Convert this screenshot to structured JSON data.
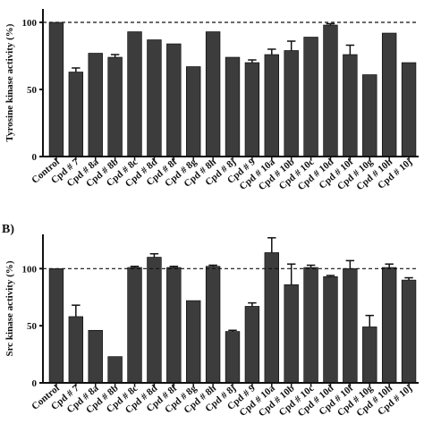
{
  "chart_data": [
    {
      "type": "bar",
      "panel_label": "",
      "ylabel": "Tyrosine kinase activity (%)",
      "xlabel": "",
      "ylim": [
        0,
        110
      ],
      "yticks": [
        0,
        50,
        100
      ],
      "reference_line": 100,
      "categories": [
        "Control",
        "Cpd # 7",
        "Cpd # 8a",
        "Cpd # 8b",
        "Cpd # 8c",
        "Cpd # 8d",
        "Cpd # 8f",
        "Cpd # 8g",
        "Cpd # 8h",
        "Cpd # 8j",
        "Cpd # 9",
        "Cpd # 10a",
        "Cpd # 10b",
        "Cpd # 10c",
        "Cpd # 10d",
        "Cpd # 10f",
        "Cpd # 10g",
        "Cpd # 10h",
        "Cpd # 10j"
      ],
      "values": [
        100,
        63,
        77,
        74,
        93,
        87,
        84,
        67,
        93,
        74,
        70,
        76,
        79,
        89,
        98,
        76,
        61,
        92,
        70
      ],
      "errors": [
        0,
        3,
        0,
        2,
        0,
        0,
        0,
        0,
        0,
        0,
        2,
        4,
        7,
        0,
        1,
        7,
        0,
        0,
        0
      ]
    },
    {
      "type": "bar",
      "panel_label": "B)",
      "ylabel": "Src kinase activity (%)",
      "xlabel": "",
      "ylim": [
        0,
        130
      ],
      "yticks": [
        0,
        50,
        100
      ],
      "reference_line": 100,
      "categories": [
        "Control",
        "Cpd # 7",
        "Cpd # 8a",
        "Cpd # 8b",
        "Cpd # 8c",
        "Cpd # 8d",
        "Cpd # 8f",
        "Cpd # 8g",
        "Cpd # 8h",
        "Cpd # 8j",
        "Cpd # 9",
        "Cpd # 10a",
        "Cpd # 10b",
        "Cpd # 10c",
        "Cpd # 10d",
        "Cpd # 10f",
        "Cpd # 10g",
        "Cpd # 10h",
        "Cpd # 10j"
      ],
      "values": [
        100,
        58,
        46,
        23,
        101,
        110,
        101,
        72,
        102,
        45,
        67,
        114,
        86,
        101,
        93,
        100,
        49,
        101,
        90
      ],
      "errors": [
        0,
        10,
        0,
        0,
        1,
        3,
        1,
        0,
        1,
        1,
        3,
        13,
        18,
        2,
        1,
        7,
        10,
        3,
        2
      ]
    }
  ],
  "colors": {
    "bar": "#3c3c3c",
    "axis": "#111111",
    "reference_line": "#111111"
  }
}
